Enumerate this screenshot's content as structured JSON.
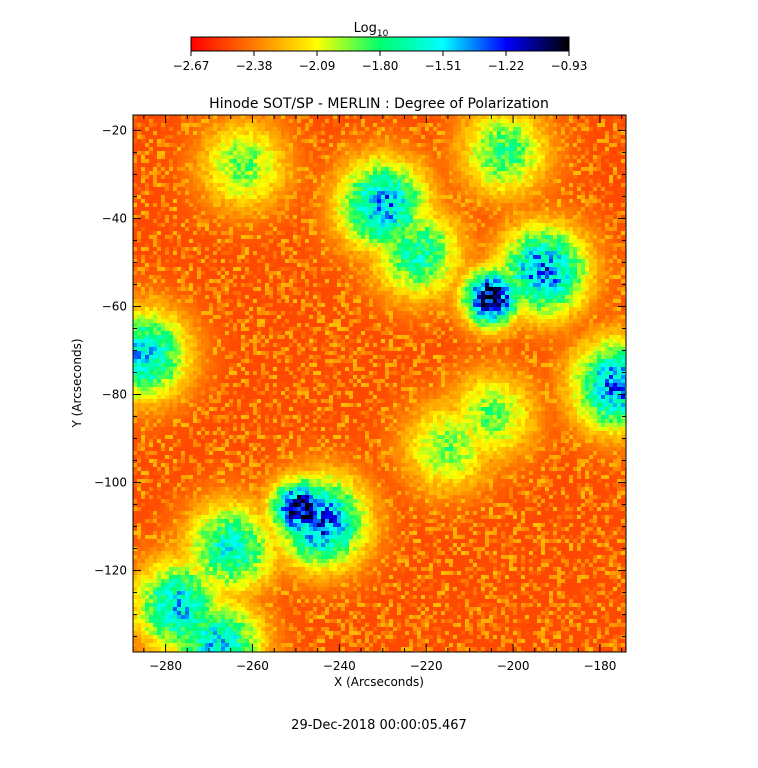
{
  "chart_data": {
    "type": "heatmap",
    "title": "Hinode SOT/SP - MERLIN : Degree of Polarization",
    "xlabel": "X (Arcseconds)",
    "ylabel": "Y (Arcseconds)",
    "footer_timestamp": "29-Dec-2018 00:00:05.467",
    "xlim": [
      -287.5,
      -174
    ],
    "ylim": [
      -138.5,
      -16.5
    ],
    "x_ticks": [
      -280,
      -260,
      -240,
      -220,
      -200,
      -180
    ],
    "y_ticks": [
      -120,
      -100,
      -80,
      -60,
      -40,
      -20
    ],
    "x_tick_labels": [
      "−280",
      "−260",
      "−240",
      "−220",
      "−200",
      "−180"
    ],
    "y_tick_labels": [
      "−120",
      "−100",
      "−80",
      "−60",
      "−40",
      "−20"
    ],
    "colorbar": {
      "label_base": "Log",
      "label_sub": "10",
      "range": [
        -2.67,
        -0.93
      ],
      "tick_labels": [
        "−2.67",
        "−2.38",
        "−2.09",
        "−1.80",
        "−1.51",
        "−1.22",
        "−0.93"
      ],
      "colors": [
        "#ff0000",
        "#ff7a00",
        "#ffff00",
        "#00ff6e",
        "#00ffff",
        "#0000ff",
        "#000000"
      ]
    },
    "background_level": -2.5,
    "regions": [
      {
        "x": -249,
        "y": -106,
        "peak": -0.95
      },
      {
        "x": -205,
        "y": -58,
        "peak": -1.0
      },
      {
        "x": -230,
        "y": -37,
        "peak": -1.4
      },
      {
        "x": -193,
        "y": -52,
        "peak": -1.35
      },
      {
        "x": -244,
        "y": -109,
        "peak": -1.3
      },
      {
        "x": -265,
        "y": -115,
        "peak": -1.6
      },
      {
        "x": -285,
        "y": -71,
        "peak": -1.5
      },
      {
        "x": -277,
        "y": -128,
        "peak": -1.5
      },
      {
        "x": -176,
        "y": -78,
        "peak": -1.35
      },
      {
        "x": -222,
        "y": -48,
        "peak": -1.7
      },
      {
        "x": -205,
        "y": -85,
        "peak": -1.9
      },
      {
        "x": -268,
        "y": -137,
        "peak": -1.5
      },
      {
        "x": -262,
        "y": -28,
        "peak": -1.9
      },
      {
        "x": -202,
        "y": -25,
        "peak": -1.8
      },
      {
        "x": -215,
        "y": -92,
        "peak": -1.9
      }
    ]
  }
}
